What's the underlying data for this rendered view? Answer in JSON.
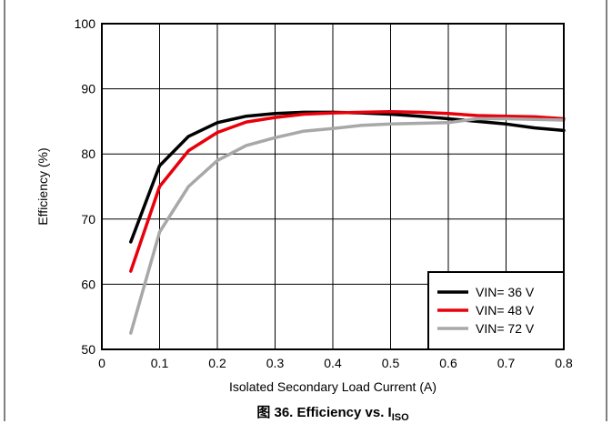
{
  "chart_data": {
    "type": "line",
    "xlabel": "Isolated Secondary Load Current (A)",
    "ylabel": "Efficiency (%)",
    "xlim": [
      0,
      0.8
    ],
    "ylim": [
      50,
      100
    ],
    "xticks": [
      "0",
      "0.1",
      "0.2",
      "0.3",
      "0.4",
      "0.5",
      "0.6",
      "0.7",
      "0.8"
    ],
    "yticks": [
      "50",
      "60",
      "70",
      "80",
      "90",
      "100"
    ],
    "grid": true,
    "legend": "bottom-right",
    "caption": {
      "prefix": "图 36. Efficiency vs. I",
      "subscript": "ISO"
    },
    "series": [
      {
        "name": "VIN= 36 V",
        "color": "#000000",
        "x": [
          0.05,
          0.1,
          0.15,
          0.2,
          0.25,
          0.3,
          0.35,
          0.4,
          0.45,
          0.5,
          0.55,
          0.6,
          0.65,
          0.7,
          0.75,
          0.8
        ],
        "y": [
          66.5,
          78.2,
          82.7,
          84.8,
          85.8,
          86.2,
          86.4,
          86.4,
          86.3,
          86.1,
          85.8,
          85.4,
          85.0,
          84.6,
          84.0,
          83.6
        ]
      },
      {
        "name": "VIN= 48 V",
        "color": "#e8000b",
        "x": [
          0.05,
          0.1,
          0.15,
          0.2,
          0.25,
          0.3,
          0.35,
          0.4,
          0.45,
          0.5,
          0.55,
          0.6,
          0.65,
          0.7,
          0.75,
          0.8
        ],
        "y": [
          62.0,
          75.0,
          80.5,
          83.3,
          84.9,
          85.6,
          86.1,
          86.3,
          86.4,
          86.5,
          86.4,
          86.2,
          85.9,
          85.8,
          85.7,
          85.4
        ]
      },
      {
        "name": "VIN= 72 V",
        "color": "#a8a8a8",
        "x": [
          0.05,
          0.1,
          0.15,
          0.2,
          0.25,
          0.3,
          0.35,
          0.4,
          0.45,
          0.5,
          0.55,
          0.6,
          0.65,
          0.7,
          0.75,
          0.8
        ],
        "y": [
          52.5,
          68.0,
          75.0,
          79.0,
          81.3,
          82.5,
          83.5,
          83.9,
          84.4,
          84.6,
          84.7,
          84.8,
          85.4,
          85.4,
          85.3,
          85.2
        ]
      }
    ]
  }
}
